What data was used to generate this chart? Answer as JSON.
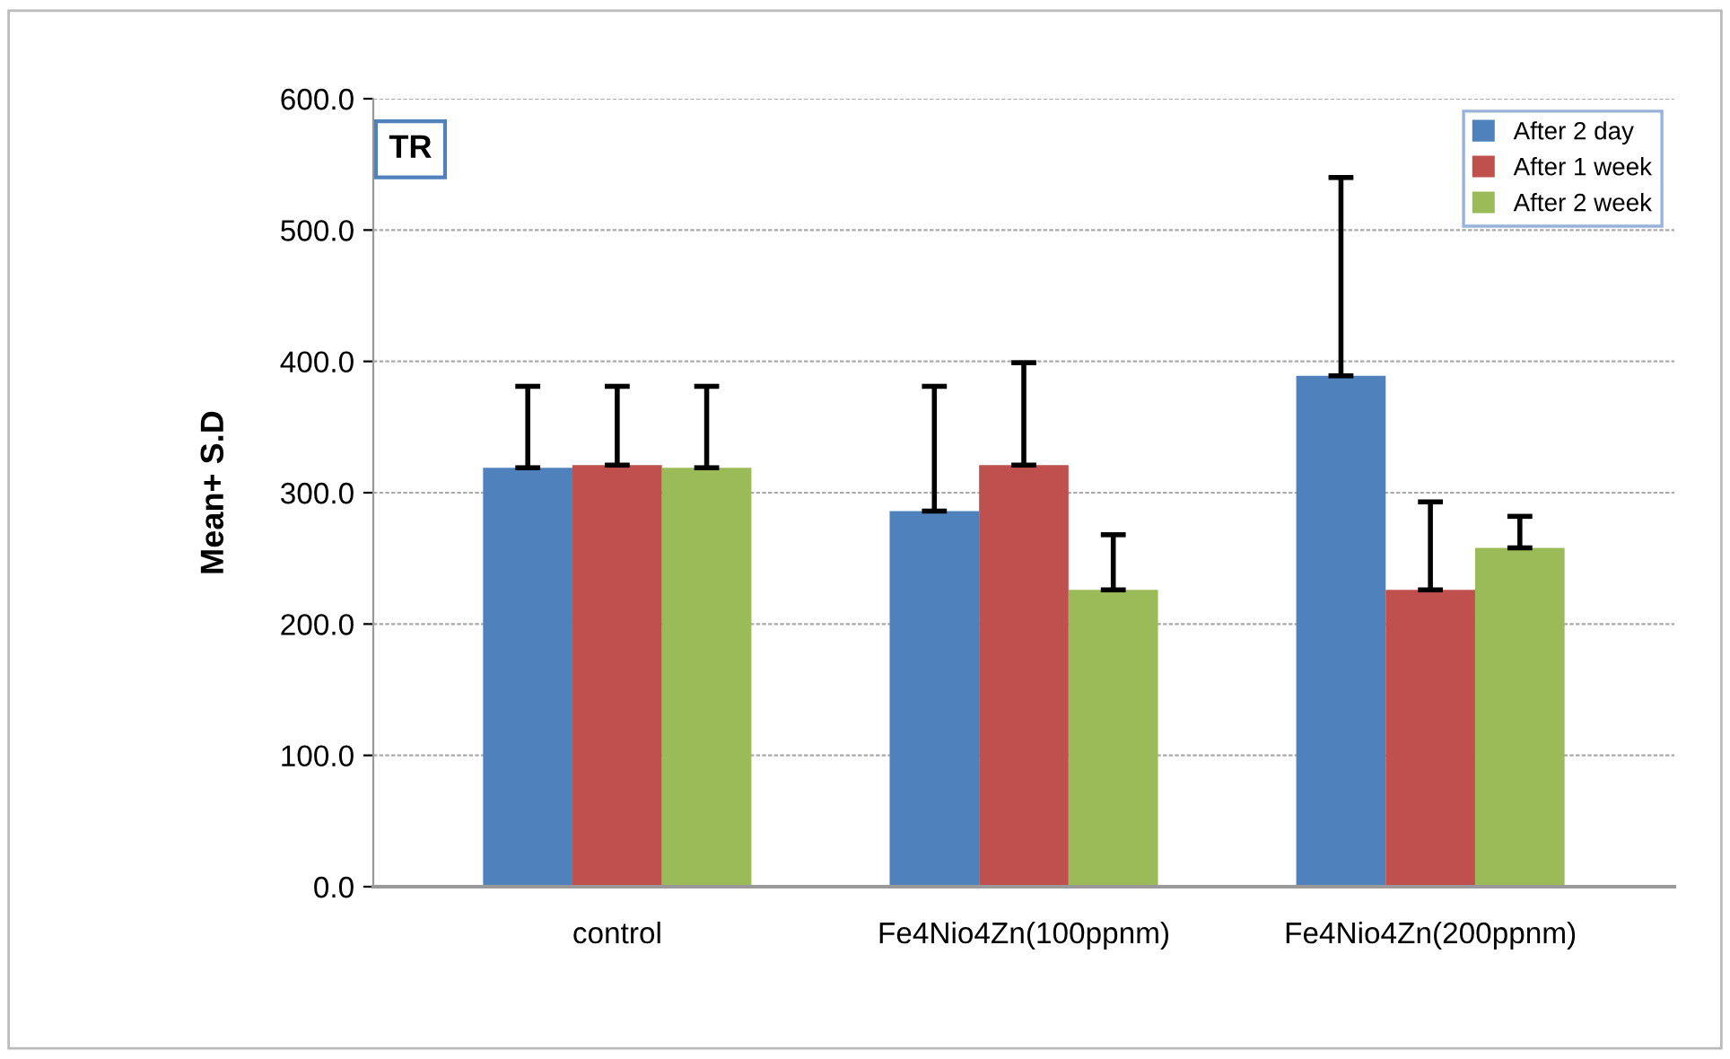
{
  "chart_data": {
    "type": "bar",
    "ylabel": "Mean+ S.D",
    "annotations": [
      "TR"
    ],
    "categories": [
      "control",
      "Fe4Nio4Zn(100ppnm)",
      "Fe4Nio4Zn(200ppnm)"
    ],
    "series": [
      {
        "name": "After 2 day",
        "color": "#4f81bd",
        "values": [
          319,
          286,
          389
        ],
        "errors": [
          [
            319,
            381
          ],
          [
            286,
            381
          ],
          [
            389,
            540
          ]
        ]
      },
      {
        "name": "After 1 week",
        "color": "#c0504d",
        "values": [
          321,
          321,
          226
        ],
        "errors": [
          [
            321,
            381
          ],
          [
            321,
            399
          ],
          [
            226,
            293
          ]
        ]
      },
      {
        "name": "After 2 week",
        "color": "#9bbb59",
        "values": [
          319,
          226,
          258
        ],
        "errors": [
          [
            319,
            381
          ],
          [
            226,
            268
          ],
          [
            258,
            282
          ]
        ]
      }
    ],
    "ylim": [
      0,
      600
    ],
    "yticks": [
      {
        "value": 0,
        "label": "0.0"
      },
      {
        "value": 100,
        "label": "100.0"
      },
      {
        "value": 200,
        "label": "200.0"
      },
      {
        "value": 300,
        "label": "300.0"
      },
      {
        "value": 400,
        "label": "400.0"
      },
      {
        "value": 500,
        "label": "500.0"
      },
      {
        "value": 600,
        "label": "600.0"
      }
    ],
    "grid": "y",
    "legend": "top right"
  }
}
